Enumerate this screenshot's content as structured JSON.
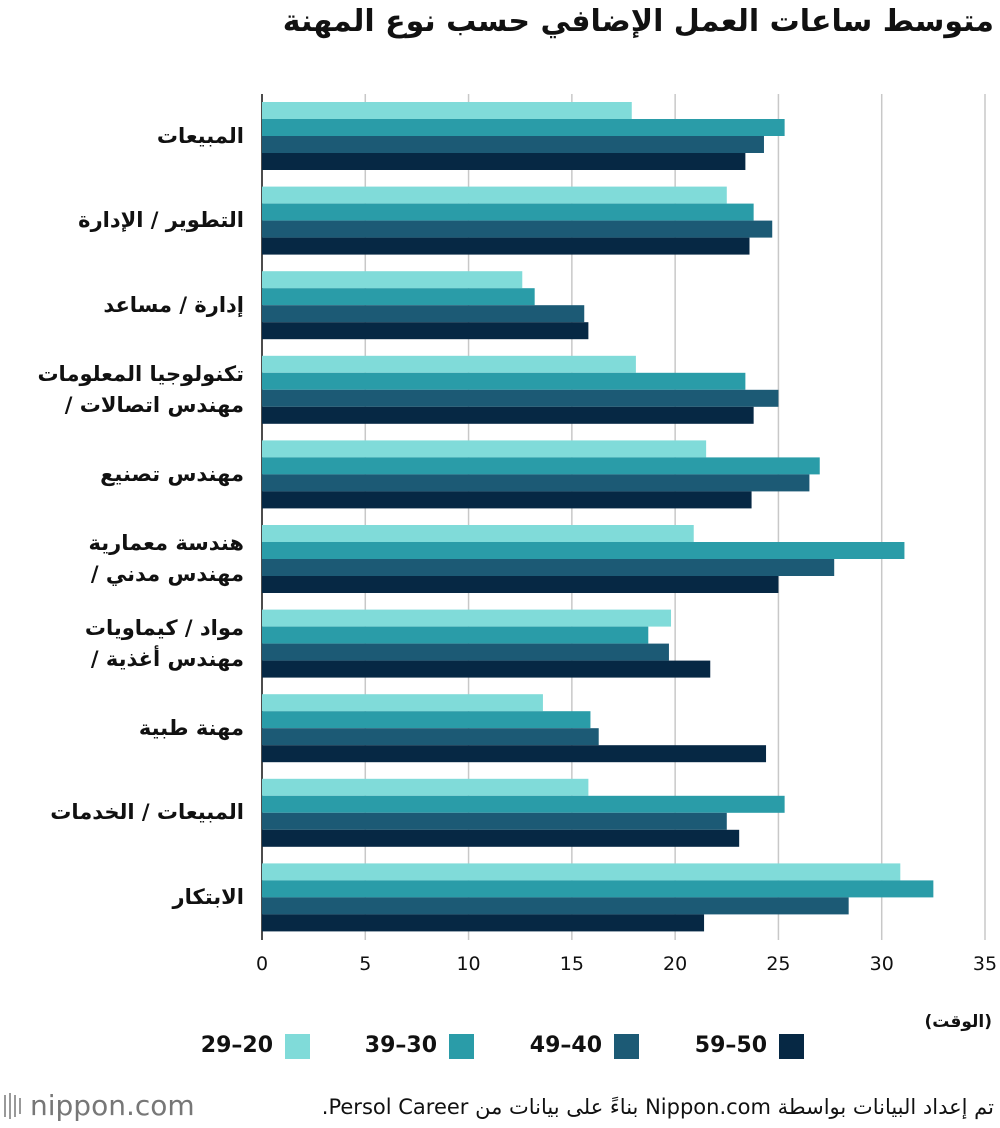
{
  "chart_data": {
    "type": "bar",
    "orientation": "horizontal",
    "title": "متوسط ساعات العمل الإضافي حسب نوع المهنة",
    "x_label": "(الوقت)",
    "categories": [
      "المبيعات",
      "التطوير / الإدارة",
      "إدارة / مساعد",
      "تكنولوجيا المعلومات\n/ مهندس اتصالات",
      "مهندس تصنيع",
      "هندسة معمارية\n/ مهندس مدني",
      "مواد / كيماويات\n/ مهندس أغذية",
      "مهنة طبية",
      "المبيعات / الخدمات",
      "الابتكار"
    ],
    "series": [
      {
        "name": "29–20",
        "color": "#80dbd9",
        "values": [
          17.9,
          22.5,
          12.6,
          18.1,
          21.5,
          20.9,
          19.8,
          13.6,
          15.8,
          30.9
        ]
      },
      {
        "name": "39–30",
        "color": "#2a9ca8",
        "values": [
          25.3,
          23.8,
          13.2,
          23.4,
          27.0,
          31.1,
          18.7,
          15.9,
          25.3,
          32.5
        ]
      },
      {
        "name": "49–40",
        "color": "#1c5a75",
        "values": [
          24.3,
          24.7,
          15.6,
          25.0,
          26.5,
          27.7,
          19.7,
          16.3,
          22.5,
          28.4
        ]
      },
      {
        "name": "59–50",
        "color": "#062844",
        "values": [
          23.4,
          23.6,
          15.8,
          23.8,
          23.7,
          25.0,
          21.7,
          24.4,
          23.1,
          21.4
        ]
      }
    ],
    "xlim": [
      0,
      35
    ],
    "xticks": [
      0,
      5,
      10,
      15,
      20,
      25,
      30,
      35
    ],
    "grid": true,
    "legend": "bottom",
    "source": "تم إعداد البيانات بواسطة Nippon.com بناءً على بيانات من Persol Career.",
    "logo": "nippon.com"
  }
}
